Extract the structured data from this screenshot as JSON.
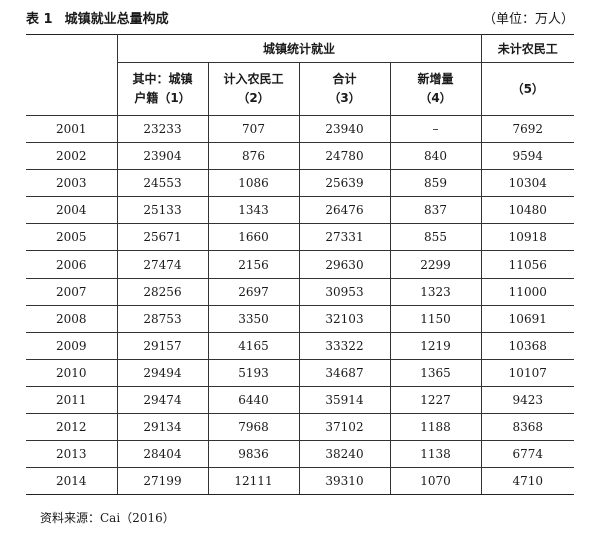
{
  "caption": {
    "label": "表 1",
    "title": "城镇就业总量构成",
    "unit": "（单位：万人）"
  },
  "header": {
    "group_counted": "城镇统计就业",
    "group_uncounted": "未计农民工",
    "col1_line1": "其中：城镇",
    "col1_line2": "户籍（1）",
    "col2_line1": "计入农民工",
    "col2_line2": "（2）",
    "col3_line1": "合计",
    "col3_line2": "（3）",
    "col4_line1": "新增量",
    "col4_line2": "（4）",
    "col5_line2": "（5）"
  },
  "rows": [
    {
      "year": "2001",
      "urban": "23233",
      "migrant": "707",
      "total": "23940",
      "increase": "–",
      "uncounted": "7692"
    },
    {
      "year": "2002",
      "urban": "23904",
      "migrant": "876",
      "total": "24780",
      "increase": "840",
      "uncounted": "9594"
    },
    {
      "year": "2003",
      "urban": "24553",
      "migrant": "1086",
      "total": "25639",
      "increase": "859",
      "uncounted": "10304"
    },
    {
      "year": "2004",
      "urban": "25133",
      "migrant": "1343",
      "total": "26476",
      "increase": "837",
      "uncounted": "10480"
    },
    {
      "year": "2005",
      "urban": "25671",
      "migrant": "1660",
      "total": "27331",
      "increase": "855",
      "uncounted": "10918"
    },
    {
      "year": "2006",
      "urban": "27474",
      "migrant": "2156",
      "total": "29630",
      "increase": "2299",
      "uncounted": "11056"
    },
    {
      "year": "2007",
      "urban": "28256",
      "migrant": "2697",
      "total": "30953",
      "increase": "1323",
      "uncounted": "11000"
    },
    {
      "year": "2008",
      "urban": "28753",
      "migrant": "3350",
      "total": "32103",
      "increase": "1150",
      "uncounted": "10691"
    },
    {
      "year": "2009",
      "urban": "29157",
      "migrant": "4165",
      "total": "33322",
      "increase": "1219",
      "uncounted": "10368"
    },
    {
      "year": "2010",
      "urban": "29494",
      "migrant": "5193",
      "total": "34687",
      "increase": "1365",
      "uncounted": "10107"
    },
    {
      "year": "2011",
      "urban": "29474",
      "migrant": "6440",
      "total": "35914",
      "increase": "1227",
      "uncounted": "9423"
    },
    {
      "year": "2012",
      "urban": "29134",
      "migrant": "7968",
      "total": "37102",
      "increase": "1188",
      "uncounted": "8368"
    },
    {
      "year": "2013",
      "urban": "28404",
      "migrant": "9836",
      "total": "38240",
      "increase": "1138",
      "uncounted": "6774"
    },
    {
      "year": "2014",
      "urban": "27199",
      "migrant": "12111",
      "total": "39310",
      "increase": "1070",
      "uncounted": "4710"
    }
  ],
  "footer": {
    "source": "资料来源：Cai（2016）"
  }
}
